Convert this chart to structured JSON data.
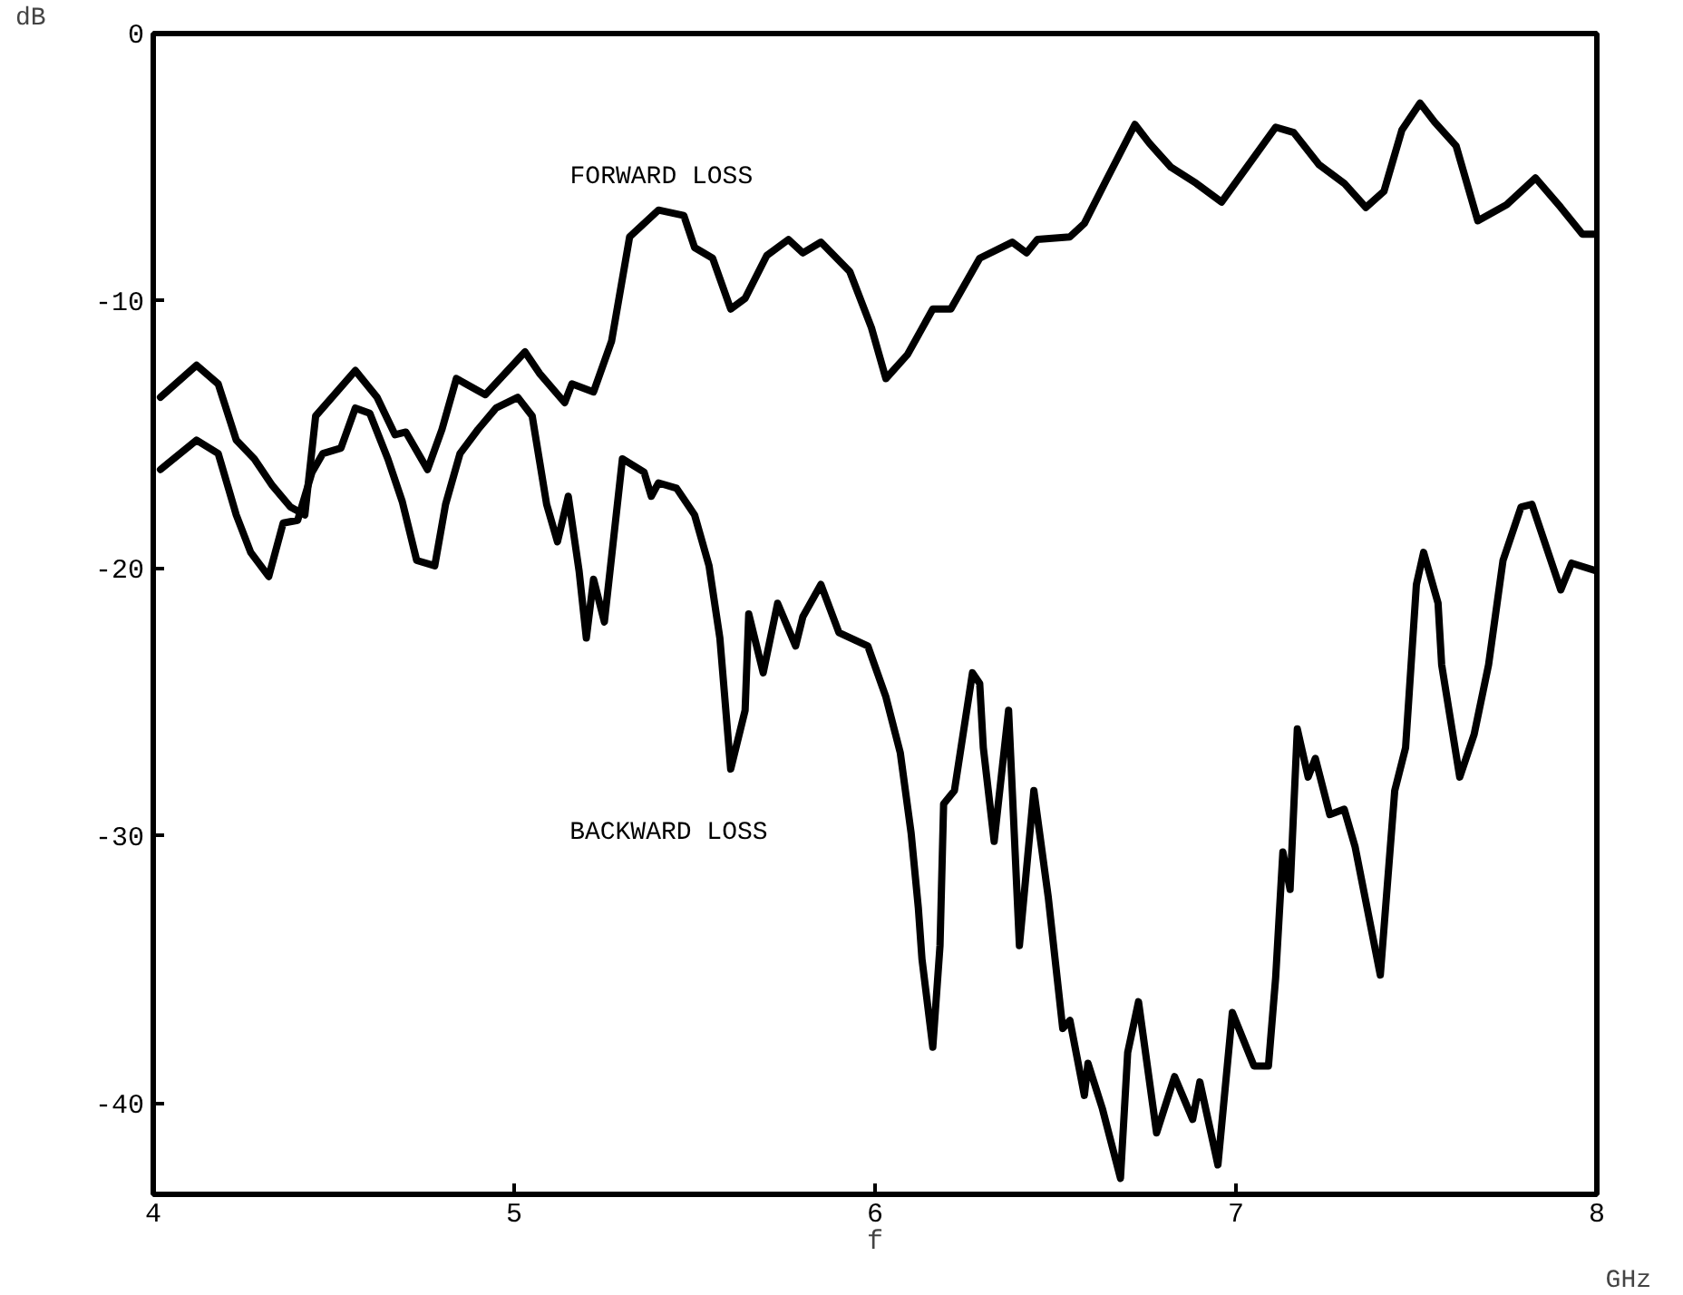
{
  "chart_data": {
    "type": "line",
    "xlabel": "f",
    "ylabel": "dB",
    "annotations": [
      "GHz"
    ],
    "xlim": [
      4,
      8
    ],
    "ylim": [
      -43.4,
      0
    ],
    "xticks": [
      4,
      5,
      6,
      7,
      8
    ],
    "yticks": [
      0,
      -10,
      -20,
      -30,
      -40
    ],
    "grid": false,
    "marker": "none",
    "line_style": "solid",
    "series": [
      {
        "name": "FORWARD LOSS",
        "color": "#000000",
        "x": [
          4.02,
          4.12,
          4.18,
          4.23,
          4.28,
          4.33,
          4.38,
          4.42,
          4.45,
          4.56,
          4.62,
          4.67,
          4.7,
          4.76,
          4.8,
          4.84,
          4.92,
          5.03,
          5.07,
          5.14,
          5.16,
          5.22,
          5.27,
          5.32,
          5.4,
          5.47,
          5.5,
          5.55,
          5.6,
          5.64,
          5.7,
          5.76,
          5.8,
          5.85,
          5.93,
          5.99,
          6.03,
          6.09,
          6.16,
          6.21,
          6.29,
          6.38,
          6.42,
          6.45,
          6.54,
          6.58,
          6.64,
          6.72,
          6.76,
          6.82,
          6.89,
          6.96,
          7.03,
          7.11,
          7.16,
          7.23,
          7.3,
          7.36,
          7.41,
          7.46,
          7.51,
          7.55,
          7.61,
          7.67,
          7.75,
          7.83,
          7.9,
          7.96,
          8.0
        ],
        "values": [
          -13.6,
          -12.4,
          -13.1,
          -15.2,
          -15.9,
          -16.9,
          -17.7,
          -18.0,
          -14.3,
          -12.6,
          -13.6,
          -15.0,
          -14.9,
          -16.3,
          -14.8,
          -12.9,
          -13.5,
          -11.9,
          -12.7,
          -13.8,
          -13.1,
          -13.4,
          -11.5,
          -7.6,
          -6.6,
          -6.8,
          -8.0,
          -8.4,
          -10.3,
          -9.9,
          -8.3,
          -7.7,
          -8.2,
          -7.8,
          -8.9,
          -11.0,
          -12.9,
          -12.0,
          -10.3,
          -10.3,
          -8.4,
          -7.8,
          -8.2,
          -7.7,
          -7.6,
          -7.1,
          -5.5,
          -3.4,
          -4.1,
          -5.0,
          -5.6,
          -6.3,
          -5.0,
          -3.5,
          -3.7,
          -4.9,
          -5.6,
          -6.5,
          -5.9,
          -3.6,
          -2.6,
          -3.3,
          -4.2,
          -7.0,
          -6.4,
          -5.4,
          -6.5,
          -7.5,
          -7.5
        ]
      },
      {
        "name": "BACKWARD LOSS",
        "color": "#000000",
        "x": [
          4.02,
          4.12,
          4.18,
          4.23,
          4.27,
          4.32,
          4.36,
          4.4,
          4.44,
          4.47,
          4.52,
          4.56,
          4.6,
          4.65,
          4.69,
          4.73,
          4.78,
          4.81,
          4.85,
          4.9,
          4.95,
          5.01,
          5.05,
          5.09,
          5.12,
          5.15,
          5.18,
          5.2,
          5.22,
          5.25,
          5.3,
          5.36,
          5.38,
          5.4,
          5.45,
          5.5,
          5.54,
          5.57,
          5.6,
          5.64,
          5.65,
          5.69,
          5.73,
          5.78,
          5.8,
          5.85,
          5.9,
          5.98,
          6.03,
          6.07,
          6.1,
          6.12,
          6.13,
          6.16,
          6.18,
          6.19,
          6.22,
          6.27,
          6.29,
          6.3,
          6.33,
          6.37,
          6.4,
          6.44,
          6.48,
          6.52,
          6.54,
          6.58,
          6.59,
          6.63,
          6.68,
          6.7,
          6.73,
          6.78,
          6.83,
          6.88,
          6.9,
          6.95,
          6.99,
          7.05,
          7.09,
          7.11,
          7.13,
          7.15,
          7.17,
          7.2,
          7.22,
          7.26,
          7.3,
          7.33,
          7.4,
          7.44,
          7.47,
          7.5,
          7.52,
          7.56,
          7.57,
          7.62,
          7.66,
          7.7,
          7.74,
          7.79,
          7.82,
          7.9,
          7.93,
          8.0
        ],
        "values": [
          -16.3,
          -15.2,
          -15.7,
          -18.0,
          -19.4,
          -20.3,
          -18.3,
          -18.2,
          -16.4,
          -15.7,
          -15.5,
          -14.0,
          -14.2,
          -15.9,
          -17.5,
          -19.7,
          -19.9,
          -17.6,
          -15.7,
          -14.8,
          -14.0,
          -13.6,
          -14.3,
          -17.6,
          -19.0,
          -17.3,
          -20.1,
          -22.6,
          -20.4,
          -22.0,
          -15.9,
          -16.4,
          -17.3,
          -16.8,
          -17.0,
          -18.0,
          -19.9,
          -22.6,
          -27.5,
          -25.3,
          -21.7,
          -23.9,
          -21.3,
          -22.9,
          -21.8,
          -20.6,
          -22.4,
          -22.9,
          -24.8,
          -26.9,
          -29.9,
          -32.7,
          -34.6,
          -37.9,
          -34.1,
          -28.8,
          -28.3,
          -23.9,
          -24.3,
          -26.7,
          -30.2,
          -25.3,
          -34.1,
          -28.3,
          -32.3,
          -37.2,
          -36.9,
          -39.7,
          -38.5,
          -40.2,
          -42.8,
          -38.1,
          -36.2,
          -41.1,
          -39.0,
          -40.6,
          -39.2,
          -42.3,
          -36.6,
          -38.6,
          -38.6,
          -35.3,
          -30.6,
          -32.0,
          -26.0,
          -27.8,
          -27.1,
          -29.2,
          -29.0,
          -30.4,
          -35.2,
          -28.3,
          -26.7,
          -20.6,
          -19.4,
          -21.3,
          -23.6,
          -27.8,
          -26.2,
          -23.6,
          -19.7,
          -17.7,
          -17.6,
          -20.8,
          -19.8,
          -20.1
        ]
      }
    ]
  }
}
